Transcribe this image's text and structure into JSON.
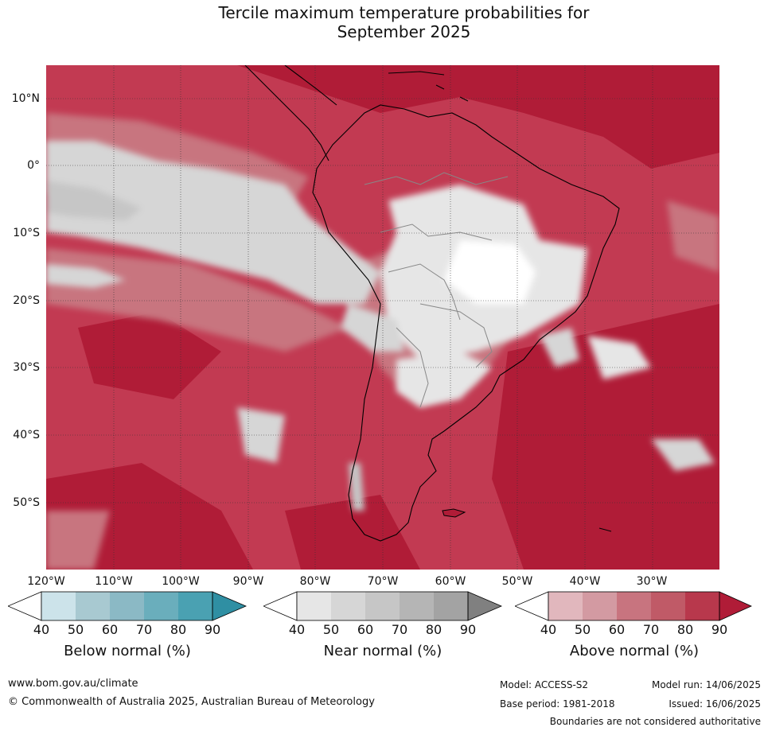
{
  "title_line1": "Tercile maximum temperature probabilities for",
  "title_line2": "September 2025",
  "map": {
    "lat_labels": [
      "10°N",
      "0°",
      "10°S",
      "20°S",
      "30°S",
      "40°S",
      "50°S"
    ],
    "lon_labels": [
      "120°W",
      "110°W",
      "100°W",
      "90°W",
      "80°W",
      "70°W",
      "60°W",
      "50°W",
      "40°W",
      "30°W"
    ],
    "ocean_color": "#c23a52",
    "land_outline_color": "#000000",
    "border_color": "#888888"
  },
  "legends": {
    "below": {
      "title": "Below normal (%)",
      "ticks": [
        "40",
        "50",
        "60",
        "70",
        "80",
        "90"
      ],
      "colors": [
        "#ffffff",
        "#cce3ea",
        "#a8c9d1",
        "#8bb9c5",
        "#6aaebc",
        "#4aa1b2",
        "#2f8fa3"
      ]
    },
    "near": {
      "title": "Near normal (%)",
      "ticks": [
        "40",
        "50",
        "60",
        "70",
        "80",
        "90"
      ],
      "colors": [
        "#ffffff",
        "#e6e6e6",
        "#d6d6d6",
        "#c6c6c6",
        "#b5b5b5",
        "#a3a3a3",
        "#808080"
      ]
    },
    "above": {
      "title": "Above normal (%)",
      "ticks": [
        "40",
        "50",
        "60",
        "70",
        "80",
        "90"
      ],
      "colors": [
        "#ffffff",
        "#e1b7bd",
        "#d39aa2",
        "#c8747f",
        "#c05a67",
        "#b8384c",
        "#b01c37"
      ]
    }
  },
  "footer": {
    "website": "www.bom.gov.au/climate",
    "copyright": "© Commonwealth of Australia 2025, Australian Bureau of Meteorology",
    "model": "Model: ACCESS-S2",
    "model_run": "Model run: 14/06/2025",
    "base_period": "Base period: 1981-2018",
    "issued": "Issued: 16/06/2025",
    "disclaimer": "Boundaries are not considered authoritative"
  }
}
